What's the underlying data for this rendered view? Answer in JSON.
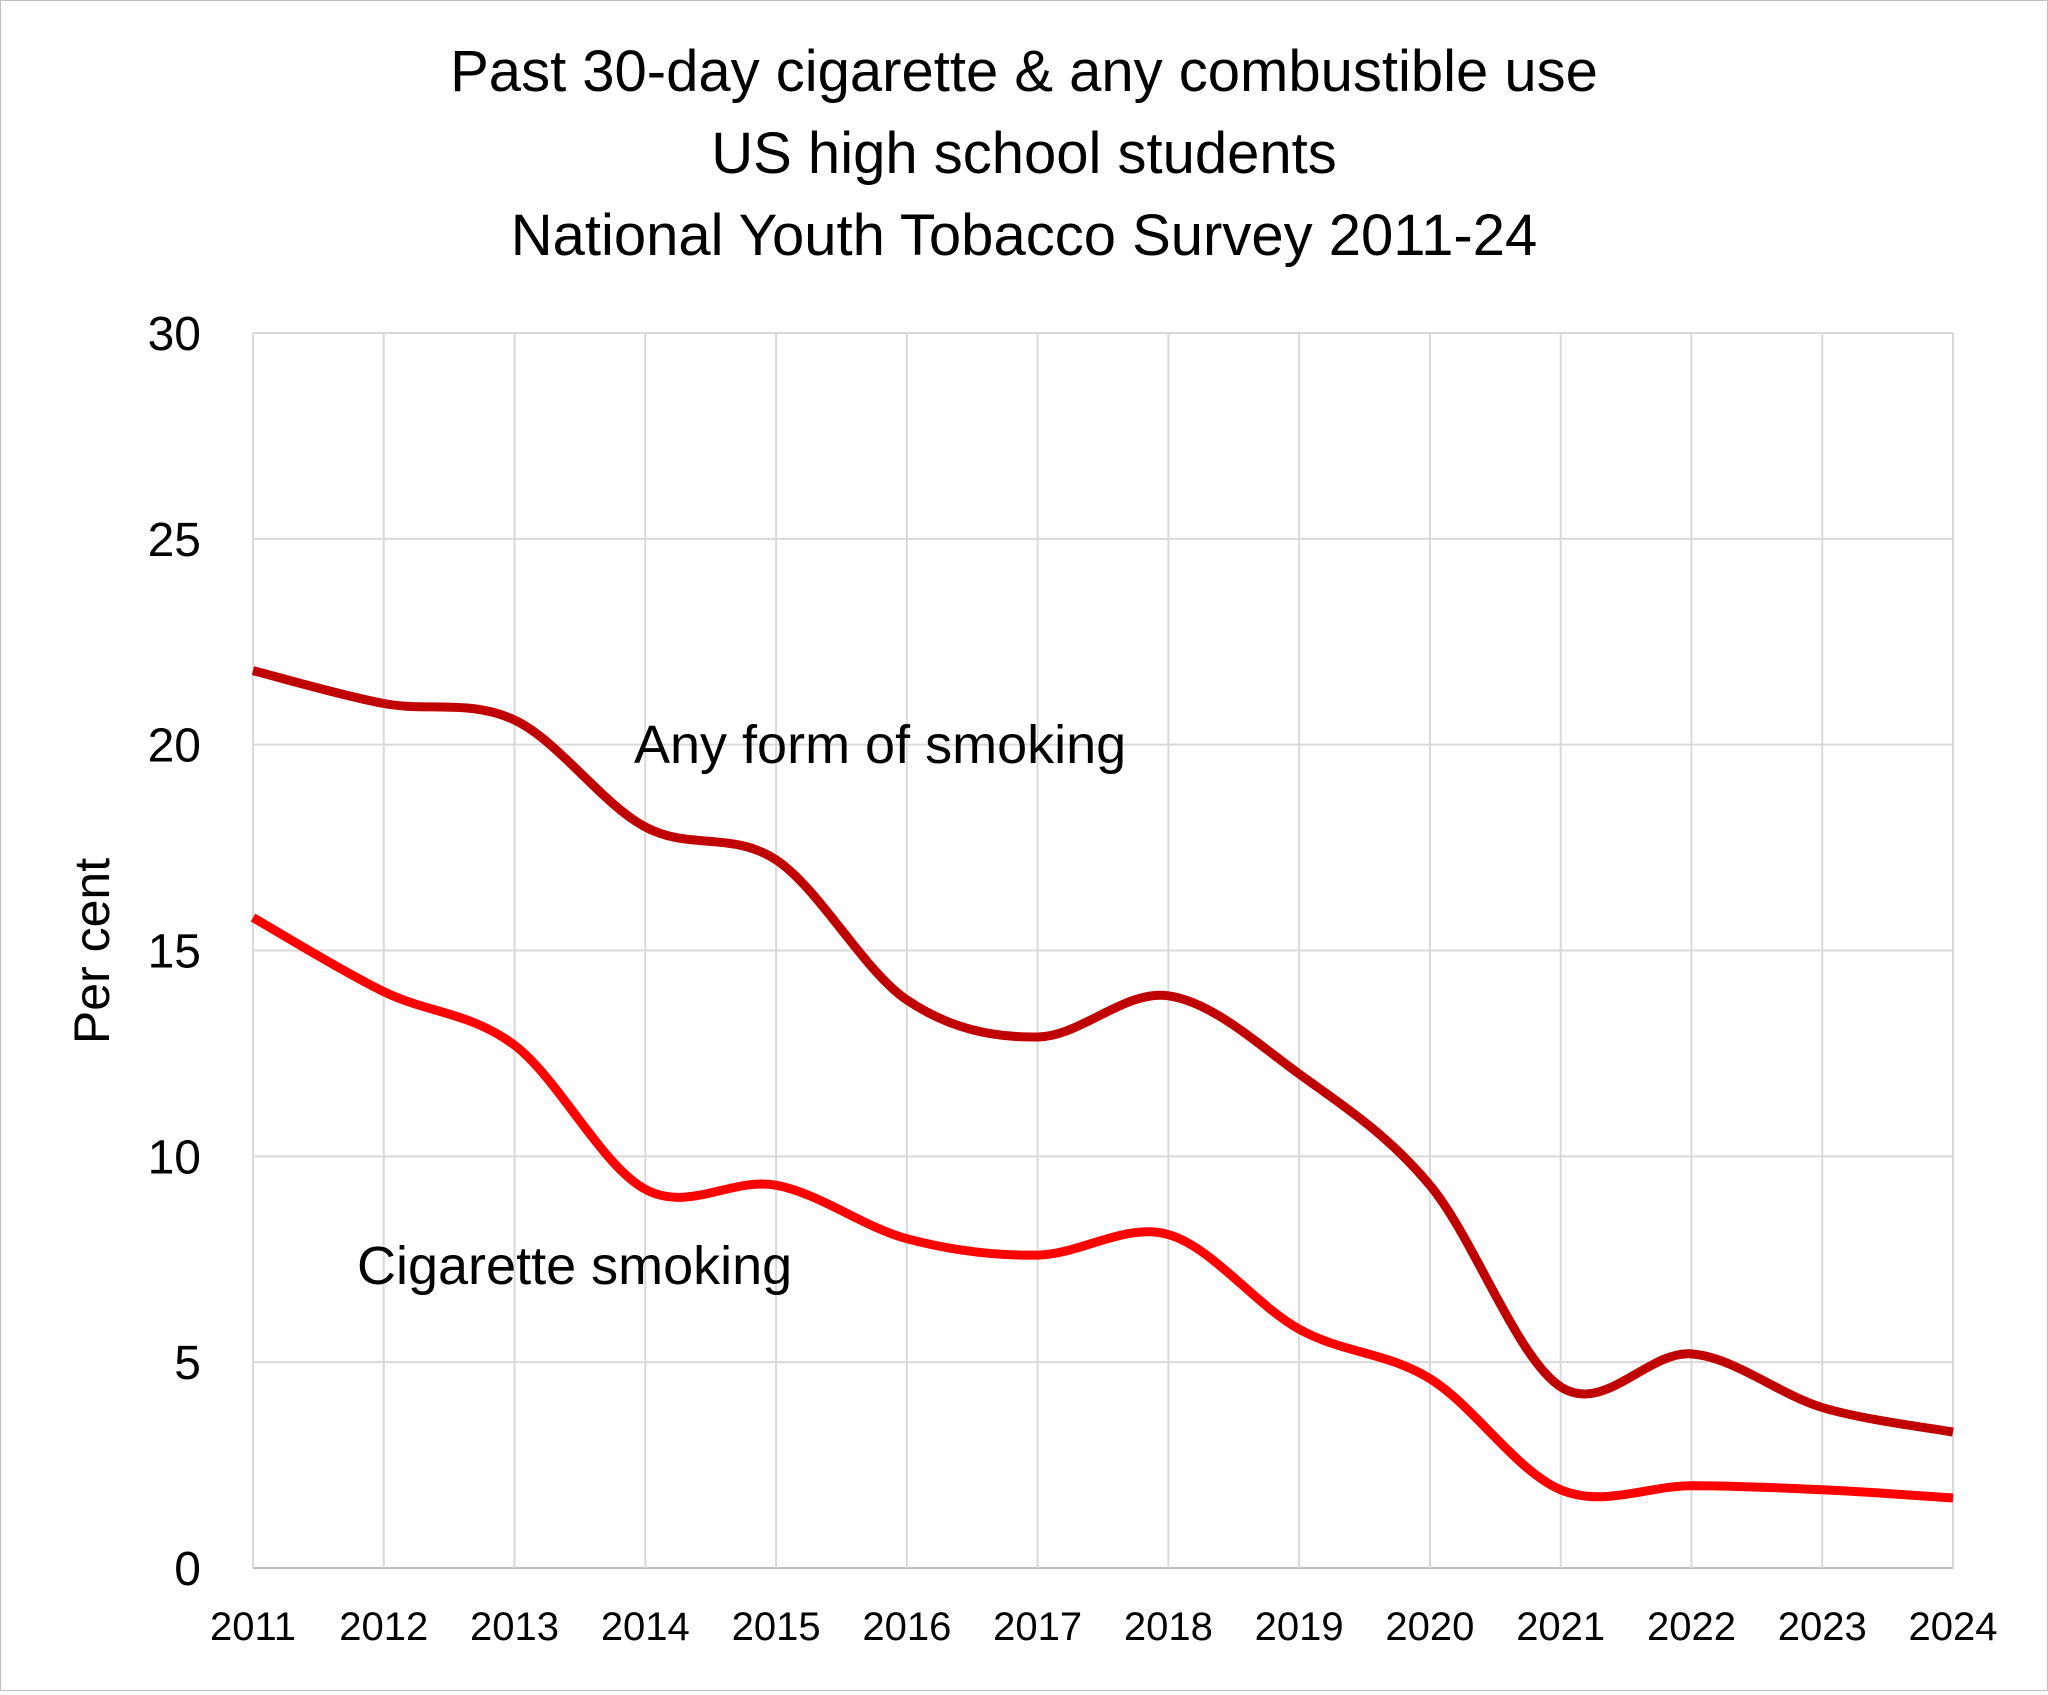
{
  "chart_data": {
    "type": "line",
    "title": [
      "Past 30-day cigarette & any combustible use",
      "US high school students",
      "National Youth Tobacco Survey 2011-24"
    ],
    "xlabel": "",
    "ylabel": "Per cent",
    "x": [
      2011,
      2012,
      2013,
      2014,
      2015,
      2016,
      2017,
      2018,
      2019,
      2020,
      2021,
      2022,
      2023,
      2024
    ],
    "ylim": [
      0,
      30
    ],
    "yticks": [
      0,
      5,
      10,
      15,
      20,
      25,
      30
    ],
    "grid": true,
    "legend": "none",
    "series": [
      {
        "name": "Any form of smoking",
        "color": "#c00000",
        "values": [
          21.8,
          21.0,
          20.6,
          18.0,
          17.2,
          13.8,
          12.9,
          13.9,
          12.0,
          9.3,
          4.4,
          5.2,
          3.9,
          3.3
        ]
      },
      {
        "name": "Cigarette smoking",
        "color": "#ff0000",
        "values": [
          15.8,
          14.0,
          12.7,
          9.2,
          9.3,
          8.0,
          7.6,
          8.1,
          5.8,
          4.6,
          1.9,
          2.0,
          1.9,
          1.7
        ]
      }
    ]
  }
}
